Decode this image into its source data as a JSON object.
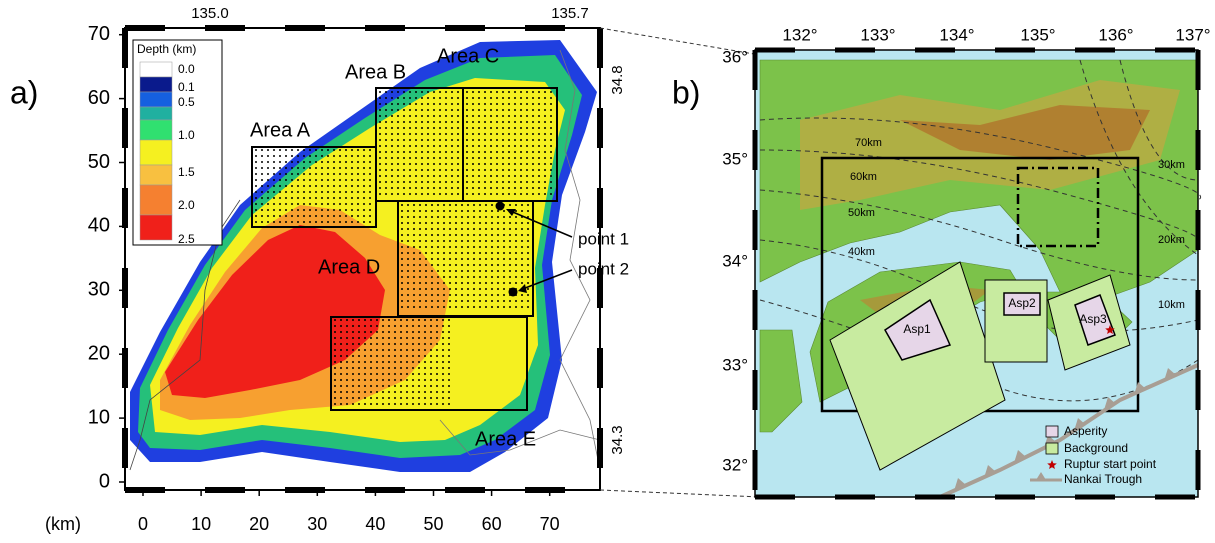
{
  "panel_a": {
    "label": "a)",
    "x_unit": "(km)",
    "x_ticks": [
      "0",
      "10",
      "20",
      "30",
      "40",
      "50",
      "60",
      "70"
    ],
    "y_ticks": [
      "0",
      "10",
      "20",
      "30",
      "40",
      "50",
      "60",
      "70"
    ],
    "top_ticks": [
      "135.0",
      "135.7"
    ],
    "right_ticks": [
      "34.8",
      "34.3"
    ],
    "legend": {
      "title": "Depth (km)",
      "values": [
        "0.0",
        "0.1",
        "0.5",
        "1.0",
        "1.5",
        "2.0",
        "2.5"
      ]
    },
    "areas": [
      "Area A",
      "Area B",
      "Area C",
      "Area D",
      "Area E"
    ],
    "points": [
      "point 1",
      "point 2"
    ]
  },
  "panel_b": {
    "label": "b)",
    "top_ticks": [
      "132°",
      "133°",
      "134°",
      "135°",
      "136°",
      "137°"
    ],
    "left_ticks": [
      "36°",
      "35°",
      "34°",
      "33°",
      "32°"
    ],
    "contours": [
      "70km",
      "60km",
      "50km",
      "40km",
      "30km",
      "20km",
      "10km"
    ],
    "asperities": [
      "Asp1",
      "Asp2",
      "Asp3"
    ],
    "legend": [
      "Asperity",
      "Background",
      "Ruptur start point",
      "Nankai Trough"
    ]
  }
}
